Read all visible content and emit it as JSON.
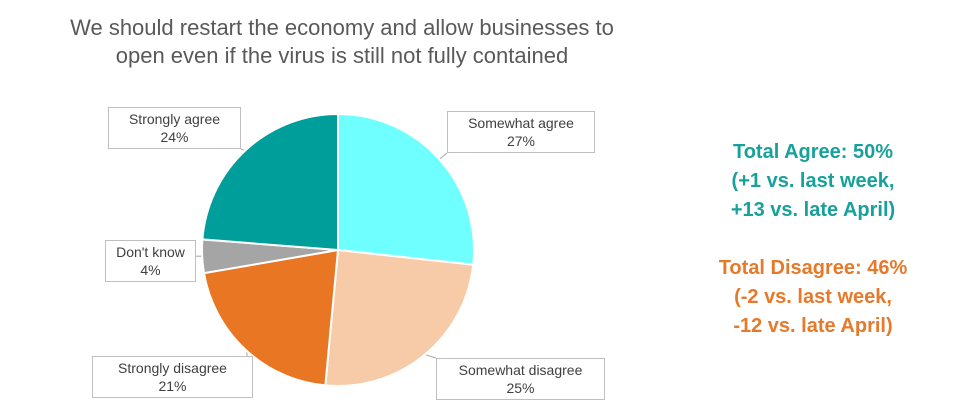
{
  "chart_data": {
    "type": "pie",
    "title_lines": [
      "We should restart the economy and allow businesses to",
      "open even if the virus is still not fully contained"
    ],
    "slices": [
      {
        "label": "Somewhat agree",
        "value": 27,
        "value_label": "27%",
        "color": "#6ffffe"
      },
      {
        "label": "Somewhat disagree",
        "value": 25,
        "value_label": "25%",
        "color": "#f8cba8"
      },
      {
        "label": "Strongly disagree",
        "value": 21,
        "value_label": "21%",
        "color": "#e97623"
      },
      {
        "label": "Don't know",
        "value": 4,
        "value_label": "4%",
        "color": "#a5a5a5"
      },
      {
        "label": "Strongly agree",
        "value": 24,
        "value_label": "24%",
        "color": "#009e9a"
      }
    ]
  },
  "summary": {
    "agree": {
      "color": "#17a19b",
      "lines": [
        "Total Agree: 50%",
        "(+1 vs. last week,",
        "+13 vs. late April)"
      ]
    },
    "disagree": {
      "color": "#e6792a",
      "lines": [
        "Total Disagree: 46%",
        "(-2 vs. last week,",
        "-12 vs. late April)"
      ]
    }
  }
}
